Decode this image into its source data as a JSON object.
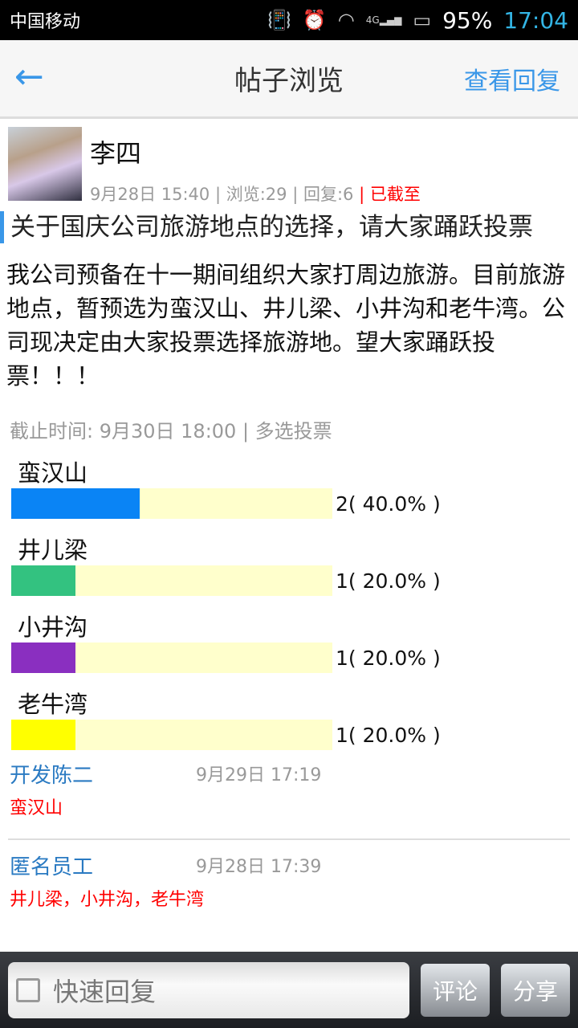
{
  "status": {
    "carrier": "中国移动",
    "network": "4G",
    "battery": "95%",
    "time": "17:04"
  },
  "header": {
    "title": "帖子浏览",
    "view_replies": "查看回复"
  },
  "post": {
    "author": "李四",
    "date": "9月28日 15:40",
    "views": "| 浏览:29",
    "replies": "| 回复:6",
    "status": "| 已截至",
    "title": "关于国庆公司旅游地点的选择，请大家踊跃投票",
    "body": "我公司预备在十一期间组织大家打周边旅游。目前旅游地点，暂预选为蛮汉山、井儿梁、小井沟和老牛湾。公司现决定由大家投票选择旅游地。望大家踊跃投票！！！"
  },
  "poll": {
    "deadline": "截止时间: 9月30日 18:00 | 多选投票",
    "options": [
      {
        "name": "蛮汉山",
        "count": "2( 40.0% )",
        "percent": 40,
        "color": "#0a84f5"
      },
      {
        "name": "井儿梁",
        "count": "1( 20.0% )",
        "percent": 20,
        "color": "#33c280"
      },
      {
        "name": "小井沟",
        "count": "1( 20.0% )",
        "percent": 20,
        "color": "#8a2fc0"
      },
      {
        "name": "老牛湾",
        "count": "1( 20.0% )",
        "percent": 20,
        "color": "#ffff00"
      }
    ]
  },
  "replies": [
    {
      "user": "开发陈二",
      "time": "9月29日 17:19",
      "choice": "蛮汉山"
    },
    {
      "user": "匿名员工",
      "time": "9月28日 17:39",
      "choice": "井儿梁，小井沟，老牛湾"
    }
  ],
  "bottom": {
    "quick_reply": "快速回复",
    "comment": "评论",
    "share": "分享"
  }
}
